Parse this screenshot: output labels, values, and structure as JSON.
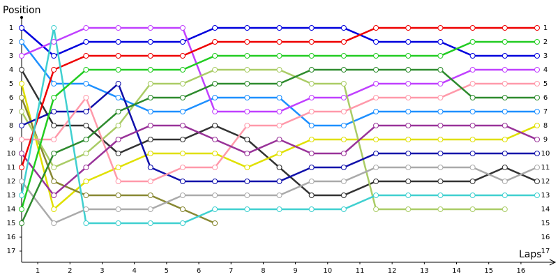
{
  "chart_data": {
    "type": "line",
    "y_label": "Position",
    "x_label": "Laps",
    "x": [
      0,
      1,
      2,
      3,
      4,
      5,
      6,
      7,
      8,
      9,
      10,
      11,
      12,
      13,
      14,
      15,
      16
    ],
    "xlim": [
      0,
      16
    ],
    "xticks": [
      {
        "value": 0.5,
        "label": "1"
      },
      {
        "value": 1.5,
        "label": "2"
      },
      {
        "value": 2.5,
        "label": "3"
      },
      {
        "value": 3.5,
        "label": "4"
      },
      {
        "value": 4.5,
        "label": "5"
      },
      {
        "value": 5.5,
        "label": "6"
      },
      {
        "value": 6.5,
        "label": "7"
      },
      {
        "value": 7.5,
        "label": "8"
      },
      {
        "value": 8.5,
        "label": "9"
      },
      {
        "value": 9.5,
        "label": "10"
      },
      {
        "value": 10.5,
        "label": "11"
      },
      {
        "value": 11.5,
        "label": "12"
      },
      {
        "value": 12.5,
        "label": "13"
      },
      {
        "value": 13.5,
        "label": "14"
      },
      {
        "value": 14.5,
        "label": "15"
      },
      {
        "value": 15.5,
        "label": "16"
      }
    ],
    "ylim": [
      0,
      17.8
    ],
    "y_reversed": true,
    "yticks": [
      1,
      2,
      3,
      4,
      5,
      6,
      7,
      8,
      9,
      10,
      11,
      12,
      13,
      14,
      15,
      16,
      17
    ],
    "series": [
      {
        "color": "#0000dd",
        "values": [
          1,
          3,
          2,
          2,
          2,
          2,
          1,
          1,
          1,
          1,
          1,
          2,
          2,
          2,
          3,
          3,
          3
        ]
      },
      {
        "color": "#1e90ff",
        "values": [
          2,
          5,
          5,
          6,
          7,
          7,
          6,
          6,
          6,
          8,
          8,
          7,
          7,
          7,
          7,
          7,
          7
        ]
      },
      {
        "color": "#c040ff",
        "values": [
          3,
          2,
          1,
          1,
          1,
          1,
          7,
          7,
          7,
          6,
          6,
          5,
          5,
          5,
          4,
          4,
          4
        ]
      },
      {
        "color": "#333333",
        "values": [
          4,
          8,
          8,
          10,
          9,
          9,
          8,
          9,
          11,
          13,
          13,
          12,
          12,
          12,
          12,
          11,
          12
        ]
      },
      {
        "color": "#e0e000",
        "values": [
          5,
          14,
          12,
          11,
          10,
          10,
          10,
          11,
          10,
          9,
          9,
          9,
          9,
          9,
          9,
          9,
          8
        ]
      },
      {
        "color": "#888833",
        "values": [
          6,
          12,
          13,
          13,
          13,
          14,
          15,
          null,
          null,
          null,
          null,
          null,
          null,
          null,
          null,
          null,
          null
        ]
      },
      {
        "color": "#aacc66",
        "values": [
          7,
          11,
          10,
          8,
          5,
          5,
          4,
          4,
          4,
          5,
          5,
          14,
          14,
          14,
          14,
          14,
          null
        ]
      },
      {
        "color": "#1010aa",
        "values": [
          8,
          7,
          7,
          5,
          11,
          12,
          12,
          12,
          12,
          11,
          11,
          10,
          10,
          10,
          10,
          10,
          10
        ]
      },
      {
        "color": "#ff99aa",
        "values": [
          9,
          9,
          6,
          12,
          12,
          11,
          11,
          8,
          8,
          7,
          7,
          6,
          6,
          6,
          5,
          5,
          5
        ]
      },
      {
        "color": "#993399",
        "values": [
          10,
          13,
          11,
          9,
          8,
          8,
          9,
          10,
          9,
          10,
          10,
          8,
          8,
          8,
          8,
          8,
          9
        ]
      },
      {
        "color": "#ee0000",
        "values": [
          11,
          4,
          3,
          3,
          3,
          3,
          2,
          2,
          2,
          2,
          2,
          1,
          1,
          1,
          1,
          1,
          1
        ]
      },
      {
        "color": "#aaaaaa",
        "values": [
          12,
          15,
          14,
          14,
          14,
          13,
          13,
          13,
          13,
          12,
          12,
          11,
          11,
          11,
          11,
          12,
          11
        ]
      },
      {
        "color": "#40d0d0",
        "values": [
          13,
          1,
          15,
          15,
          15,
          15,
          14,
          14,
          14,
          14,
          14,
          13,
          13,
          13,
          13,
          13,
          13
        ]
      },
      {
        "color": "#22cc22",
        "values": [
          14,
          6,
          4,
          4,
          4,
          4,
          3,
          3,
          3,
          3,
          3,
          3,
          3,
          3,
          2,
          2,
          2
        ]
      },
      {
        "color": "#2e8b2e",
        "values": [
          15,
          10,
          9,
          7,
          6,
          6,
          5,
          5,
          5,
          4,
          4,
          4,
          4,
          4,
          6,
          6,
          6
        ]
      }
    ]
  }
}
